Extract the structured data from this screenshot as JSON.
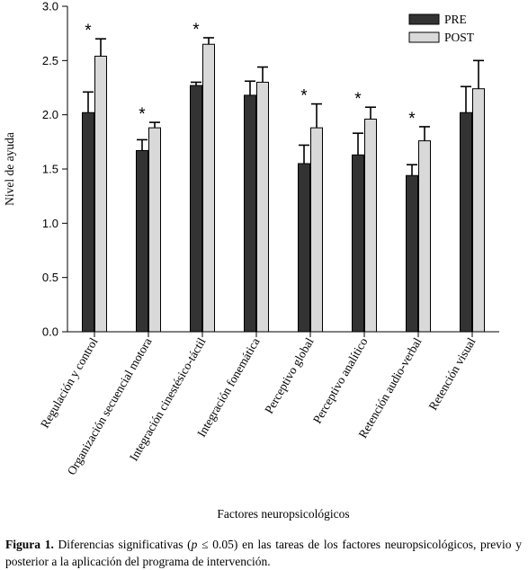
{
  "chart_data": {
    "type": "bar",
    "xlabel": "Factores neuropsicológicos",
    "ylabel": "Nivel de ayuda",
    "ylim": [
      0,
      3
    ],
    "yticks": [
      "0.0",
      "0.5",
      "1.0",
      "1.5",
      "2.0",
      "2.5",
      "3.0"
    ],
    "legend_position": "top-right",
    "grid": false,
    "categories": [
      "Regulación y control",
      "Organización secuencial motora",
      "Integración cinestésico-táctil",
      "Integración fonemática",
      "Perceptivo global",
      "Perceptivo analítico",
      "Retención audio-verbal",
      "Retención visual"
    ],
    "series": [
      {
        "name": "PRE",
        "color": "#333333",
        "values": [
          2.02,
          1.67,
          2.27,
          2.18,
          1.55,
          1.63,
          1.44,
          2.02
        ],
        "error": [
          0.19,
          0.1,
          0.03,
          0.13,
          0.17,
          0.2,
          0.1,
          0.24
        ]
      },
      {
        "name": "POST",
        "color": "#d9d9d9",
        "values": [
          2.54,
          1.88,
          2.65,
          2.3,
          1.88,
          1.96,
          1.76,
          2.24
        ],
        "error": [
          0.16,
          0.05,
          0.06,
          0.14,
          0.22,
          0.11,
          0.13,
          0.26
        ]
      }
    ],
    "significant": [
      true,
      true,
      true,
      false,
      true,
      true,
      true,
      false
    ],
    "significance_marker": "*"
  },
  "caption": {
    "label": "Figura 1.",
    "text_before": " Diferencias significativas (",
    "p_symbol": "p",
    "text_after": " ≤ 0.05) en las tareas de los factores neuropsicológicos, previo y posterior a la aplicación del programa de intervención."
  }
}
